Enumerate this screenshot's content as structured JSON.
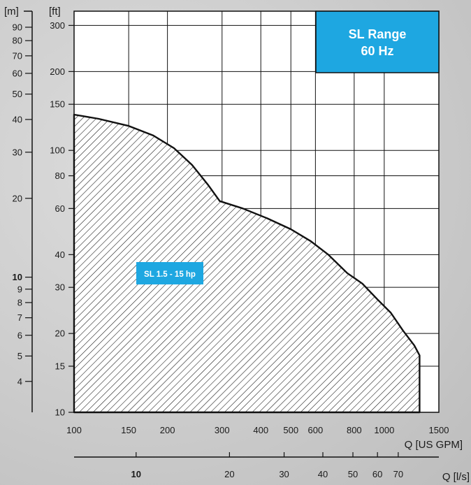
{
  "chart_data": {
    "type": "area",
    "title": "SL Range",
    "subtitle": "60 Hz",
    "accent_color": "#1ea7e1",
    "grid": true,
    "x_scale": "log",
    "y_scale": "log",
    "x_unit": "Q [US GPM]",
    "x2_unit": "Q [l/s]",
    "y_unit": "[ft]",
    "y2_unit": "[m]",
    "xlim": [
      100,
      1500
    ],
    "ylim": [
      10,
      340
    ],
    "x_ticks": [
      "100",
      "150",
      "200",
      "300",
      "400",
      "500",
      "600",
      "800",
      "1000",
      "1500"
    ],
    "y_ticks": [
      "10",
      "15",
      "20",
      "30",
      "40",
      "60",
      "80",
      "100",
      "150",
      "200",
      "300"
    ],
    "x2_ticks": [
      "10",
      "20",
      "30",
      "40",
      "50",
      "60",
      "70"
    ],
    "y2_ticks": [
      "4",
      "5",
      "6",
      "7",
      "8",
      "9",
      "10",
      "20",
      "30",
      "40",
      "50",
      "60",
      "70",
      "80",
      "90"
    ],
    "series": [
      {
        "name": "SL 1.5 - 15 hp",
        "fill": "hatched",
        "x": [
          100,
          120,
          150,
          180,
          210,
          240,
          270,
          295,
          350,
          420,
          500,
          580,
          660,
          760,
          850,
          950,
          1050,
          1150,
          1250,
          1300,
          1300
        ],
        "y": [
          137,
          132,
          124,
          114,
          102,
          88,
          74,
          64,
          60,
          55,
          50,
          45,
          40,
          34,
          31,
          27,
          24,
          20.5,
          18,
          16.5,
          10
        ]
      }
    ]
  }
}
